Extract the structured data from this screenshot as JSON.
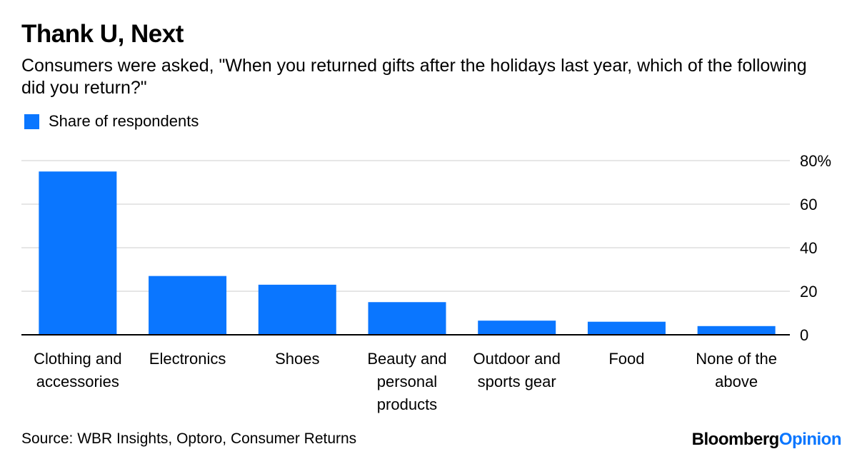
{
  "header": {
    "title": "Thank U, Next",
    "subtitle": "Consumers were asked, \"When you returned gifts after the holidays last year, which of the following did you return?\""
  },
  "legend": {
    "label": "Share of respondents",
    "color": "#0a76ff"
  },
  "chart_data": {
    "type": "bar",
    "categories": [
      [
        "Clothing and",
        "accessories"
      ],
      [
        "Electronics"
      ],
      [
        "Shoes"
      ],
      [
        "Beauty and",
        "personal",
        "products"
      ],
      [
        "Outdoor and",
        "sports gear"
      ],
      [
        "Food"
      ],
      [
        "None of the",
        "above"
      ]
    ],
    "series": [
      {
        "name": "Share of respondents",
        "values": [
          75,
          27,
          23,
          15,
          6.5,
          6,
          4
        ]
      }
    ],
    "ylim": [
      0,
      80
    ],
    "yticks": [
      0,
      20,
      40,
      60,
      80
    ],
    "ytick_labels": [
      "0",
      "20",
      "40",
      "60",
      "80%"
    ],
    "grid": true,
    "bar_color": "#0a76ff",
    "grid_color": "#e6e6e6"
  },
  "footer": {
    "source": "Source: WBR Insights, Optoro, Consumer Returns",
    "logo_part1": "Bloomberg",
    "logo_part2": "Opinion"
  }
}
